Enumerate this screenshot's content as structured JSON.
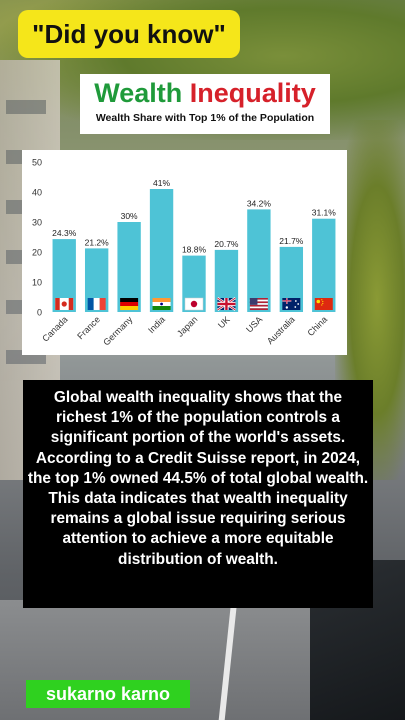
{
  "badge": {
    "text": "\"Did you know\""
  },
  "header": {
    "title_word1": "Wealth",
    "title_word2": "Inequality",
    "subtitle": "Wealth Share with Top 1% of the Population"
  },
  "chart_data": {
    "type": "bar",
    "title": "",
    "xlabel": "",
    "ylabel": "",
    "ylim": [
      0,
      50
    ],
    "yticks": [
      0,
      10,
      20,
      30,
      40,
      50
    ],
    "categories": [
      "Canada",
      "France",
      "Germany",
      "India",
      "Japan",
      "UK",
      "USA",
      "Australia",
      "China"
    ],
    "values": [
      24.3,
      21.2,
      30,
      41,
      18.8,
      20.7,
      34.2,
      21.7,
      31.1
    ],
    "data_labels": [
      "24.3%",
      "21.2%",
      "30%",
      "41%",
      "18.8%",
      "20.7%",
      "34.2%",
      "21.7%",
      "31.1%"
    ],
    "bar_color": "#4ec3d6",
    "flags": [
      "canada-flag-icon",
      "france-flag-icon",
      "germany-flag-icon",
      "india-flag-icon",
      "japan-flag-icon",
      "uk-flag-icon",
      "usa-flag-icon",
      "australia-flag-icon",
      "china-flag-icon"
    ],
    "grid": false
  },
  "body": {
    "paragraph": "Global wealth inequality shows that the richest 1% of the population controls a significant portion of the world's assets. According to a Credit Suisse report, in 2024, the top 1% owned 44.5% of total global wealth. This data indicates that wealth inequality remains a global issue requiring serious attention to achieve a more equitable distribution of wealth."
  },
  "author": {
    "name": "sukarno karno"
  },
  "colors": {
    "badge_bg": "#f5e61a",
    "title_green": "#1f9a3a",
    "title_red": "#d6212a",
    "author_bg": "#2fd11f"
  }
}
